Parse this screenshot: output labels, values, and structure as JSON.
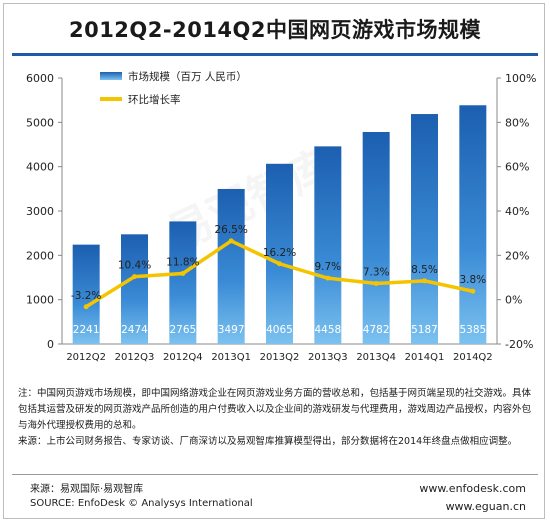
{
  "title": "2012Q2-2014Q2中国网页游戏市场规模",
  "watermark": "易观智库",
  "chart_data": {
    "type": "bar",
    "categories": [
      "2012Q2",
      "2012Q3",
      "2012Q4",
      "2013Q1",
      "2013Q2",
      "2013Q3",
      "2013Q4",
      "2014Q1",
      "2014Q2"
    ],
    "series": [
      {
        "name": "市场规模（百万 人民币）",
        "type": "bar",
        "axis": "left",
        "color": "#2b78c2",
        "values": [
          2241,
          2474,
          2765,
          3497,
          4065,
          4458,
          4782,
          5187,
          5385
        ],
        "labels": [
          "2241",
          "2474",
          "2765",
          "3497",
          "4065",
          "4458",
          "4782",
          "5187",
          "5385"
        ]
      },
      {
        "name": "环比增长率",
        "type": "line",
        "axis": "right",
        "color": "#f5c400",
        "values": [
          -3.2,
          10.4,
          11.8,
          26.5,
          16.2,
          9.7,
          7.3,
          8.5,
          3.8
        ],
        "labels": [
          "-3.2%",
          "10.4%",
          "11.8%",
          "26.5%",
          "16.2%",
          "9.7%",
          "7.3%",
          "8.5%",
          "3.8%"
        ]
      }
    ],
    "y_left": {
      "ylim": [
        0,
        6000
      ],
      "ticks": [
        "0",
        "1000",
        "2000",
        "3000",
        "4000",
        "5000",
        "6000"
      ]
    },
    "y_right": {
      "ylim": [
        -20,
        100
      ],
      "ticks": [
        "-20%",
        "0%",
        "20%",
        "40%",
        "60%",
        "80%",
        "100%"
      ]
    },
    "grid": false,
    "legend": "top-left"
  },
  "notes": [
    "注：中国网页游戏市场规模，即中国网络游戏企业在网页游戏业务方面的营收总和，包括基于网页端呈现的社交游戏。具体包括其运营及研发的网页游戏产品所创造的用户付费收入以及企业间的游戏研发与代理费用，游戏周边产品授权，内容外包与海外代理授权费用的总和。",
    "来源：上市公司财务报告、专家访谈、厂商深访以及易观智库推算模型得出，部分数据将在2014年终盘点做相应调整。"
  ],
  "source_cn": "来源：易观国际·易观智库",
  "source_en": "SOURCE: EnfoDesk © Analysys International",
  "website1": "www.enfodesk.com",
  "website2": "www.eguan.cn"
}
